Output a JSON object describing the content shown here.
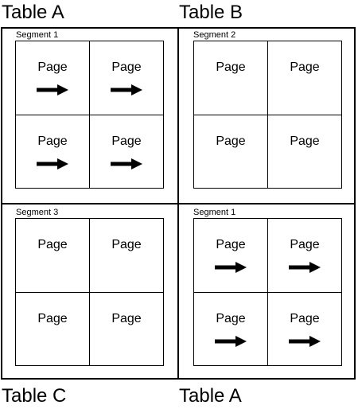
{
  "labels": {
    "top_left": "Table A",
    "top_right": "Table B",
    "bottom_left": "Table C",
    "bottom_right": "Table A"
  },
  "segments": [
    {
      "id": "tl",
      "label": "Segment 1",
      "pages": [
        {
          "text": "Page",
          "arrow": true
        },
        {
          "text": "Page",
          "arrow": true
        },
        {
          "text": "Page",
          "arrow": true
        },
        {
          "text": "Page",
          "arrow": true
        }
      ]
    },
    {
      "id": "tr",
      "label": "Segment 2",
      "pages": [
        {
          "text": "Page",
          "arrow": false
        },
        {
          "text": "Page",
          "arrow": false
        },
        {
          "text": "Page",
          "arrow": false
        },
        {
          "text": "Page",
          "arrow": false
        }
      ]
    },
    {
      "id": "bl",
      "label": "Segment 3",
      "pages": [
        {
          "text": "Page",
          "arrow": false
        },
        {
          "text": "Page",
          "arrow": false
        },
        {
          "text": "Page",
          "arrow": false
        },
        {
          "text": "Page",
          "arrow": false
        }
      ]
    },
    {
      "id": "br",
      "label": "Segment 1",
      "pages": [
        {
          "text": "Page",
          "arrow": true
        },
        {
          "text": "Page",
          "arrow": true
        },
        {
          "text": "Page",
          "arrow": true
        },
        {
          "text": "Page",
          "arrow": true
        }
      ]
    }
  ]
}
